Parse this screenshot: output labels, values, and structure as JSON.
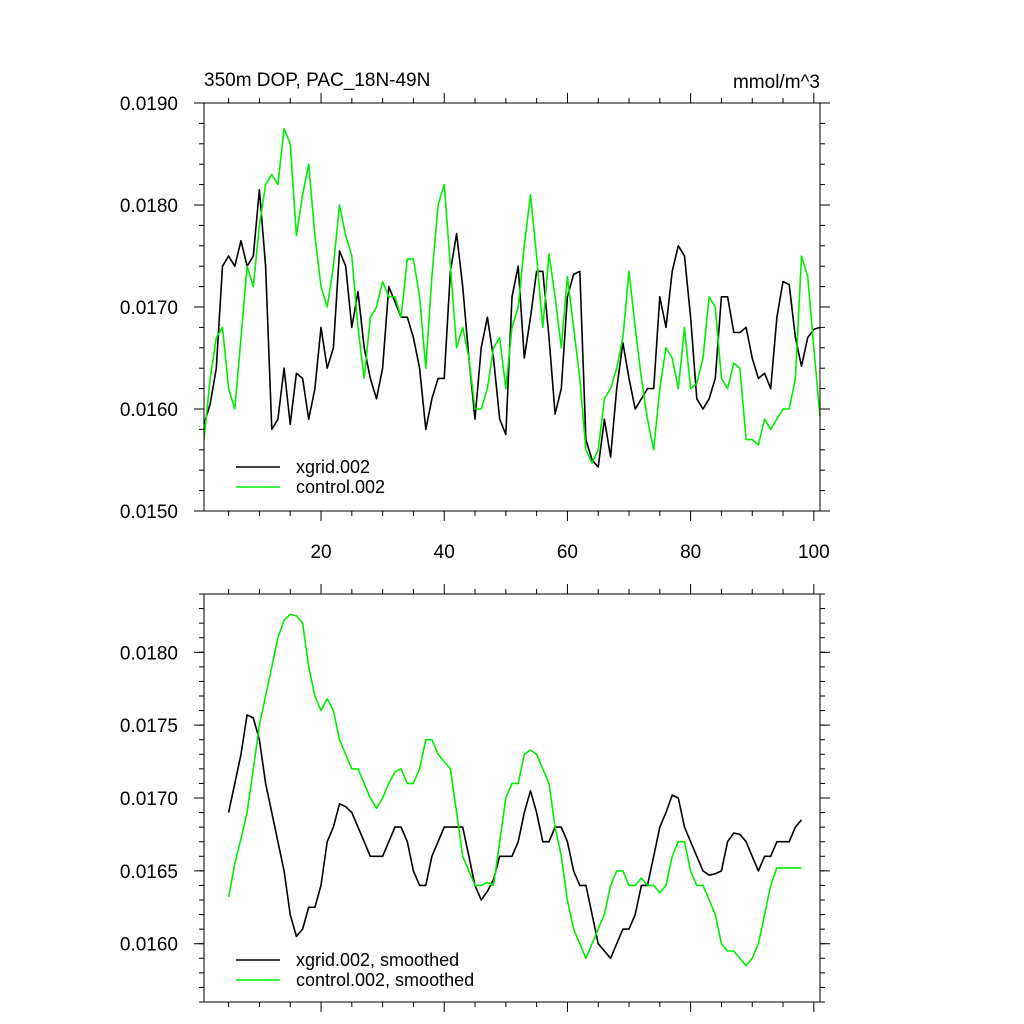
{
  "chart_data": [
    {
      "type": "line",
      "title": "350m DOP, PAC_18N-49N",
      "units": "mmol/m^3",
      "xlim": [
        1,
        101
      ],
      "ylim": [
        0.015,
        0.019
      ],
      "xticks": [
        20,
        40,
        60,
        80,
        100
      ],
      "xtick_labels": [
        "20",
        "40",
        "60",
        "80",
        "100"
      ],
      "yticks": [
        0.015,
        0.016,
        0.017,
        0.018,
        0.019
      ],
      "ytick_labels": [
        "0.0150",
        "0.0160",
        "0.0170",
        "0.0180",
        "0.0190"
      ],
      "legend_position": "bottom-left",
      "series": [
        {
          "name": "xgrid.002",
          "color": "#000000",
          "x": [
            1,
            2,
            3,
            4,
            5,
            6,
            7,
            8,
            9,
            10,
            11,
            12,
            13,
            14,
            15,
            16,
            17,
            18,
            19,
            20,
            21,
            22,
            23,
            24,
            25,
            26,
            27,
            28,
            29,
            30,
            31,
            32,
            33,
            34,
            35,
            36,
            37,
            38,
            39,
            40,
            41,
            42,
            43,
            44,
            45,
            46,
            47,
            48,
            49,
            50,
            51,
            52,
            53,
            54,
            55,
            56,
            57,
            58,
            59,
            60,
            61,
            62,
            63,
            64,
            65,
            66,
            67,
            68,
            69,
            70,
            71,
            72,
            73,
            74,
            75,
            76,
            77,
            78,
            79,
            80,
            81,
            82,
            83,
            84,
            85,
            86,
            87,
            88,
            89,
            90,
            91,
            92,
            93,
            94,
            95,
            96,
            97,
            98,
            99,
            100,
            101
          ],
          "values": [
            0.01585,
            0.01605,
            0.0164,
            0.0174,
            0.0175,
            0.0174,
            0.01765,
            0.0174,
            0.0175,
            0.01815,
            0.0174,
            0.0158,
            0.0159,
            0.0164,
            0.01585,
            0.01635,
            0.0163,
            0.0159,
            0.0162,
            0.0168,
            0.0164,
            0.0166,
            0.01755,
            0.0174,
            0.0168,
            0.01715,
            0.0166,
            0.0163,
            0.0161,
            0.0164,
            0.0172,
            0.01705,
            0.0169,
            0.0169,
            0.0167,
            0.0164,
            0.0158,
            0.0161,
            0.0163,
            0.0163,
            0.01735,
            0.01772,
            0.0172,
            0.0165,
            0.0159,
            0.0166,
            0.0169,
            0.0165,
            0.0159,
            0.01575,
            0.0171,
            0.0174,
            0.0165,
            0.0169,
            0.01735,
            0.01735,
            0.0167,
            0.01595,
            0.0162,
            0.0171,
            0.01732,
            0.01735,
            0.0157,
            0.0155,
            0.01543,
            0.0159,
            0.01553,
            0.0162,
            0.01665,
            0.0163,
            0.016,
            0.0161,
            0.0162,
            0.0162,
            0.0171,
            0.0168,
            0.01735,
            0.0176,
            0.0175,
            0.0169,
            0.0161,
            0.016,
            0.0161,
            0.0163,
            0.0171,
            0.0171,
            0.01675,
            0.01675,
            0.0168,
            0.0165,
            0.0163,
            0.01635,
            0.0162,
            0.0169,
            0.01725,
            0.01722,
            0.0167,
            0.01642,
            0.0167,
            0.01678,
            0.0168
          ]
        },
        {
          "name": "control.002",
          "color": "#00ee00",
          "x": [
            1,
            2,
            3,
            4,
            5,
            6,
            7,
            8,
            9,
            10,
            11,
            12,
            13,
            14,
            15,
            16,
            17,
            18,
            19,
            20,
            21,
            22,
            23,
            24,
            25,
            26,
            27,
            28,
            29,
            30,
            31,
            32,
            33,
            34,
            35,
            36,
            37,
            38,
            39,
            40,
            41,
            42,
            43,
            44,
            45,
            46,
            47,
            48,
            49,
            50,
            51,
            52,
            53,
            54,
            55,
            56,
            57,
            58,
            59,
            60,
            61,
            62,
            63,
            64,
            65,
            66,
            67,
            68,
            69,
            70,
            71,
            72,
            73,
            74,
            75,
            76,
            77,
            78,
            79,
            80,
            81,
            82,
            83,
            84,
            85,
            86,
            87,
            88,
            89,
            90,
            91,
            92,
            93,
            94,
            95,
            96,
            97,
            98,
            99,
            100,
            101
          ],
          "values": [
            0.0157,
            0.0163,
            0.0167,
            0.0168,
            0.0162,
            0.016,
            0.0167,
            0.0174,
            0.0172,
            0.0178,
            0.0182,
            0.0183,
            0.0182,
            0.01875,
            0.0186,
            0.0177,
            0.0181,
            0.0184,
            0.0177,
            0.0172,
            0.017,
            0.0174,
            0.018,
            0.0177,
            0.0175,
            0.0168,
            0.0163,
            0.0169,
            0.017,
            0.01725,
            0.0171,
            0.0171,
            0.0169,
            0.01747,
            0.01747,
            0.0171,
            0.0164,
            0.0173,
            0.018,
            0.0182,
            0.0174,
            0.0166,
            0.0168,
            0.0165,
            0.016,
            0.016,
            0.0162,
            0.0166,
            0.0167,
            0.0162,
            0.0168,
            0.017,
            0.0176,
            0.0181,
            0.0175,
            0.0168,
            0.01752,
            0.0171,
            0.0166,
            0.0173,
            0.0168,
            0.0163,
            0.0156,
            0.01547,
            0.0156,
            0.0161,
            0.0162,
            0.0164,
            0.0167,
            0.01735,
            0.0168,
            0.0163,
            0.0159,
            0.0156,
            0.0162,
            0.0166,
            0.0165,
            0.0162,
            0.0168,
            0.0162,
            0.01625,
            0.0165,
            0.0171,
            0.017,
            0.0163,
            0.0162,
            0.01645,
            0.0164,
            0.0157,
            0.0157,
            0.01565,
            0.0159,
            0.0158,
            0.0159,
            0.016,
            0.016,
            0.0163,
            0.0175,
            0.0173,
            0.0166,
            0.01593
          ]
        }
      ]
    },
    {
      "type": "line",
      "title": "",
      "xlim": [
        1,
        101
      ],
      "ylim": [
        0.0156,
        0.0184
      ],
      "xticks": [
        20,
        40,
        60,
        80,
        100
      ],
      "yticks": [
        0.016,
        0.0165,
        0.017,
        0.0175,
        0.018
      ],
      "ytick_labels": [
        "0.0160",
        "0.0165",
        "0.0170",
        "0.0175",
        "0.0180"
      ],
      "legend_position": "bottom-left",
      "series": [
        {
          "name": "xgrid.002, smoothed",
          "color": "#000000",
          "x": [
            5,
            6,
            7,
            8,
            9,
            10,
            11,
            12,
            13,
            14,
            15,
            16,
            17,
            18,
            19,
            20,
            21,
            22,
            23,
            24,
            25,
            26,
            27,
            28,
            29,
            30,
            31,
            32,
            33,
            34,
            35,
            36,
            37,
            38,
            39,
            40,
            41,
            42,
            43,
            44,
            45,
            46,
            47,
            48,
            49,
            50,
            51,
            52,
            53,
            54,
            55,
            56,
            57,
            58,
            59,
            60,
            61,
            62,
            63,
            64,
            65,
            66,
            67,
            68,
            69,
            70,
            71,
            72,
            73,
            74,
            75,
            76,
            77,
            78,
            79,
            80,
            81,
            82,
            83,
            84,
            85,
            86,
            87,
            88,
            89,
            90,
            91,
            92,
            93,
            94,
            95,
            96,
            97,
            98
          ],
          "values": [
            0.0169,
            0.0171,
            0.0173,
            0.01757,
            0.01755,
            0.0174,
            0.0171,
            0.0169,
            0.0167,
            0.0165,
            0.0162,
            0.01605,
            0.0161,
            0.01625,
            0.01625,
            0.0164,
            0.0167,
            0.0168,
            0.01696,
            0.01694,
            0.0169,
            0.0168,
            0.0167,
            0.0166,
            0.0166,
            0.0166,
            0.0167,
            0.0168,
            0.0168,
            0.0167,
            0.0165,
            0.0164,
            0.0164,
            0.0166,
            0.0167,
            0.0168,
            0.0168,
            0.0168,
            0.0168,
            0.0166,
            0.0164,
            0.0163,
            0.01636,
            0.01644,
            0.0166,
            0.0166,
            0.0166,
            0.0167,
            0.0169,
            0.01705,
            0.0169,
            0.0167,
            0.0167,
            0.0168,
            0.0168,
            0.0167,
            0.0165,
            0.0164,
            0.0164,
            0.0162,
            0.016,
            0.01595,
            0.0159,
            0.016,
            0.0161,
            0.0161,
            0.0162,
            0.0164,
            0.0164,
            0.0166,
            0.0168,
            0.0169,
            0.01702,
            0.017,
            0.0168,
            0.0167,
            0.0166,
            0.0165,
            0.01647,
            0.01648,
            0.0165,
            0.0167,
            0.01676,
            0.01675,
            0.0167,
            0.0166,
            0.0165,
            0.0166,
            0.0166,
            0.0167,
            0.0167,
            0.0167,
            0.0168,
            0.01685
          ]
        },
        {
          "name": "control.002, smoothed",
          "color": "#00ee00",
          "x": [
            5,
            6,
            7,
            8,
            9,
            10,
            11,
            12,
            13,
            14,
            15,
            16,
            17,
            18,
            19,
            20,
            21,
            22,
            23,
            24,
            25,
            26,
            27,
            28,
            29,
            30,
            31,
            32,
            33,
            34,
            35,
            36,
            37,
            38,
            39,
            40,
            41,
            42,
            43,
            44,
            45,
            46,
            47,
            48,
            49,
            50,
            51,
            52,
            53,
            54,
            55,
            56,
            57,
            58,
            59,
            60,
            61,
            62,
            63,
            64,
            65,
            66,
            67,
            68,
            69,
            70,
            71,
            72,
            73,
            74,
            75,
            76,
            77,
            78,
            79,
            80,
            81,
            82,
            83,
            84,
            85,
            86,
            87,
            88,
            89,
            90,
            91,
            92,
            93,
            94,
            95,
            96,
            97,
            98
          ],
          "values": [
            0.01632,
            0.01655,
            0.01672,
            0.0169,
            0.0172,
            0.0175,
            0.0177,
            0.0179,
            0.0181,
            0.01822,
            0.01826,
            0.01825,
            0.0182,
            0.0179,
            0.0177,
            0.0176,
            0.01768,
            0.0176,
            0.0174,
            0.0173,
            0.0172,
            0.0172,
            0.0171,
            0.017,
            0.01693,
            0.017,
            0.0171,
            0.01718,
            0.0172,
            0.0171,
            0.0171,
            0.0172,
            0.0174,
            0.0174,
            0.0173,
            0.01725,
            0.0172,
            0.0169,
            0.0166,
            0.0165,
            0.0164,
            0.0164,
            0.01642,
            0.0164,
            0.0167,
            0.017,
            0.0171,
            0.0171,
            0.0173,
            0.01733,
            0.0173,
            0.0172,
            0.0171,
            0.0168,
            0.0166,
            0.0163,
            0.0161,
            0.016,
            0.0159,
            0.016,
            0.0161,
            0.0162,
            0.0164,
            0.0165,
            0.0165,
            0.0164,
            0.0164,
            0.01645,
            0.0164,
            0.0164,
            0.01635,
            0.0164,
            0.0166,
            0.0167,
            0.0167,
            0.0165,
            0.0164,
            0.0164,
            0.0163,
            0.0162,
            0.016,
            0.01595,
            0.01595,
            0.0159,
            0.01585,
            0.0159,
            0.016,
            0.0162,
            0.0164,
            0.01652,
            0.01652,
            0.01652,
            0.01652,
            0.01652
          ]
        }
      ]
    }
  ]
}
